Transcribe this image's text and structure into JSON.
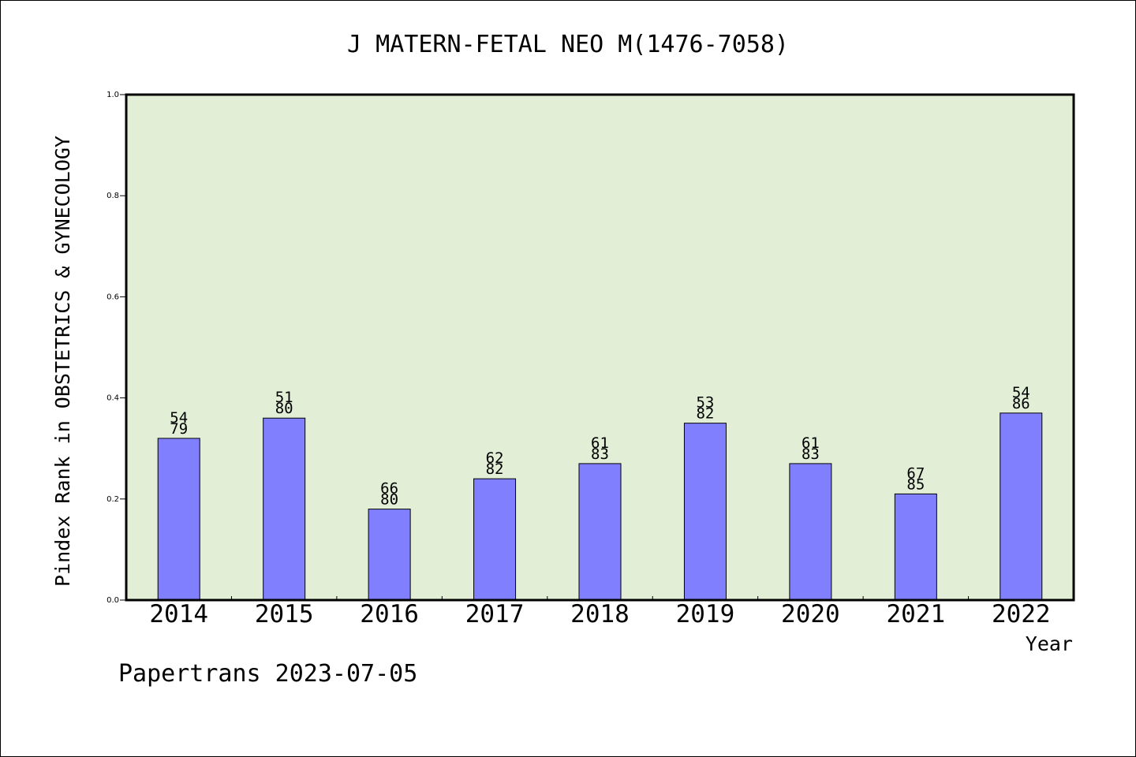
{
  "chart_data": {
    "type": "bar",
    "title": "J MATERN-FETAL NEO M(1476-7058)",
    "xlabel": "Year",
    "ylabel": "Pindex Rank in OBSTETRICS & GYNECOLOGY",
    "ylim": [
      0,
      1.0
    ],
    "yticks": [
      "0.0",
      "0.2",
      "0.4",
      "0.6",
      "0.8",
      "1.0"
    ],
    "categories": [
      "2014",
      "2015",
      "2016",
      "2017",
      "2018",
      "2019",
      "2020",
      "2021",
      "2022"
    ],
    "values": [
      0.32,
      0.36,
      0.18,
      0.24,
      0.27,
      0.35,
      0.27,
      0.21,
      0.37
    ],
    "label_top": [
      "54",
      "51",
      "66",
      "62",
      "61",
      "53",
      "61",
      "67",
      "54"
    ],
    "label_bottom": [
      "79",
      "80",
      "80",
      "82",
      "83",
      "82",
      "83",
      "85",
      "86"
    ],
    "grid": false,
    "legend": "none",
    "colors": {
      "bar": "#8080ff",
      "plot_bg": "#e2efd6",
      "axis": "#000000"
    }
  },
  "footer": {
    "credit": "Papertrans 2023-07-05"
  }
}
